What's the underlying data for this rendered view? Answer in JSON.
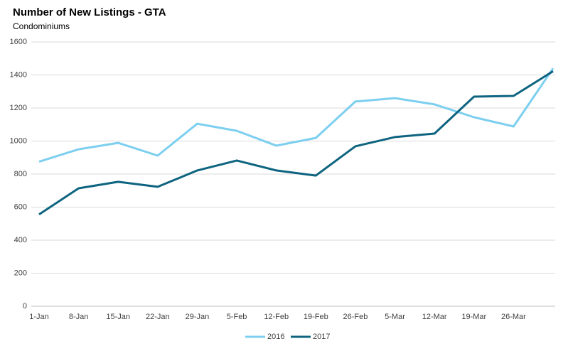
{
  "chart_data": {
    "type": "line",
    "title": "Number of New Listings - GTA",
    "subtitle": "Condominiums",
    "categories": [
      "1-Jan",
      "8-Jan",
      "15-Jan",
      "22-Jan",
      "29-Jan",
      "5-Feb",
      "12-Feb",
      "19-Feb",
      "26-Feb",
      "5-Mar",
      "12-Mar",
      "19-Mar",
      "26-Mar",
      null
    ],
    "series": [
      {
        "name": "2016",
        "color": "#7dcff0",
        "values": [
          875,
          950,
          989,
          912,
          1105,
          1062,
          972,
          1019,
          1239,
          1260,
          1222,
          1144,
          1088,
          1440
        ]
      },
      {
        "name": "2017",
        "color": "#0e6480",
        "values": [
          556,
          714,
          753,
          723,
          822,
          882,
          822,
          791,
          968,
          1024,
          1045,
          1269,
          1273,
          1423
        ]
      }
    ],
    "ylim": [
      0,
      1600
    ],
    "yticks": [
      0,
      200,
      400,
      600,
      800,
      1000,
      1200,
      1400,
      1600
    ],
    "grid": true,
    "legend": "bottom"
  }
}
